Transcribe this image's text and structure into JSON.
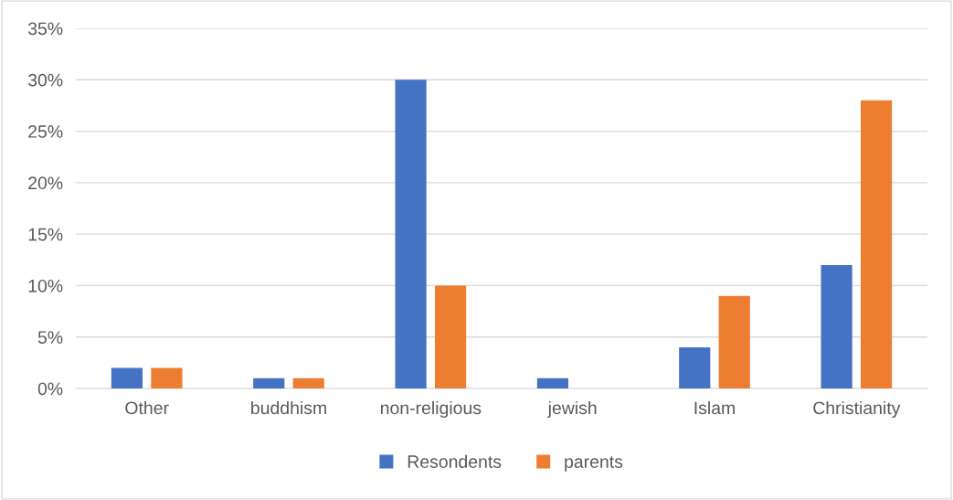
{
  "chart_data": {
    "type": "bar",
    "categories": [
      "Other",
      "buddhism",
      "non-religious",
      "jewish",
      "Islam",
      "Christianity"
    ],
    "series": [
      {
        "name": "Resondents",
        "color": "#4472c4",
        "values": [
          2,
          1,
          30,
          1,
          4,
          12
        ]
      },
      {
        "name": "parents",
        "color": "#ed7d31",
        "values": [
          2,
          1,
          10,
          0,
          9,
          28
        ]
      }
    ],
    "ylim": [
      0,
      35
    ],
    "yticks": [
      {
        "value": 0,
        "label": "0%"
      },
      {
        "value": 5,
        "label": "5%"
      },
      {
        "value": 10,
        "label": "10%"
      },
      {
        "value": 15,
        "label": "15%"
      },
      {
        "value": 20,
        "label": "20%"
      },
      {
        "value": 25,
        "label": "25%"
      },
      {
        "value": 30,
        "label": "30%"
      },
      {
        "value": 35,
        "label": "35%"
      }
    ],
    "grid": "y",
    "legend": "bottom"
  }
}
